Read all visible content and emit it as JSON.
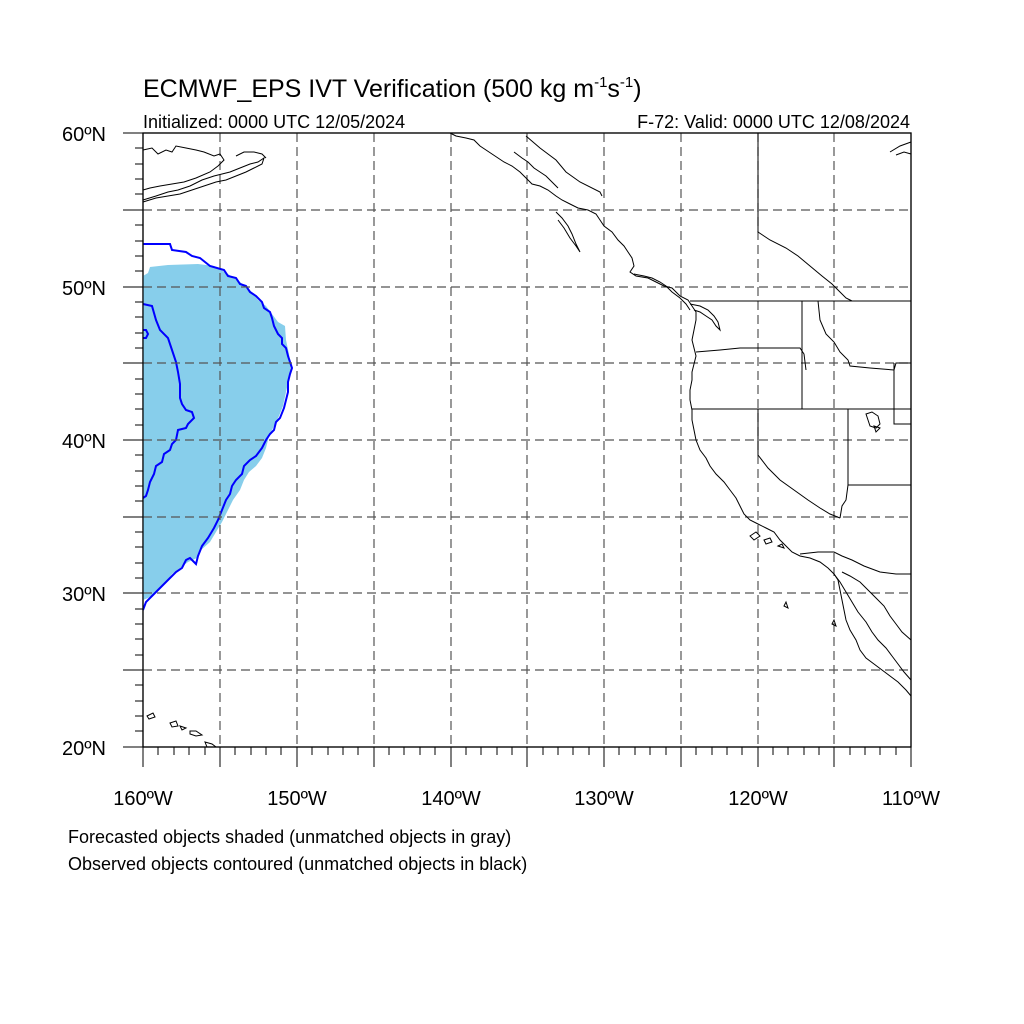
{
  "title": {
    "prefix": "ECMWF_EPS IVT Verification (500 kg m",
    "sup1": "-1",
    "mid": "s",
    "sup2": "-1",
    "suffix": ")"
  },
  "initialized": "Initialized: 0000 UTC 12/05/2024",
  "valid": "F-72: Valid: 0000 UTC 12/08/2024",
  "lat_labels": [
    "60ºN",
    "50ºN",
    "40ºN",
    "30ºN",
    "20ºN"
  ],
  "lon_labels": [
    "160ºW",
    "150ºW",
    "140ºW",
    "130ºW",
    "120ºW",
    "110ºW"
  ],
  "legend": {
    "line1": "Forecasted objects shaded (unmatched objects in gray)",
    "line2": "Observed objects contoured (unmatched objects in black)"
  },
  "colors": {
    "forecast_fill": "#87ceeb",
    "observed_contour": "#0000ff",
    "coastline": "#000000",
    "grid": "#555555"
  },
  "map_extent": {
    "lon_min": -160,
    "lon_max": -110,
    "lat_min": 20,
    "lat_max": 60
  }
}
